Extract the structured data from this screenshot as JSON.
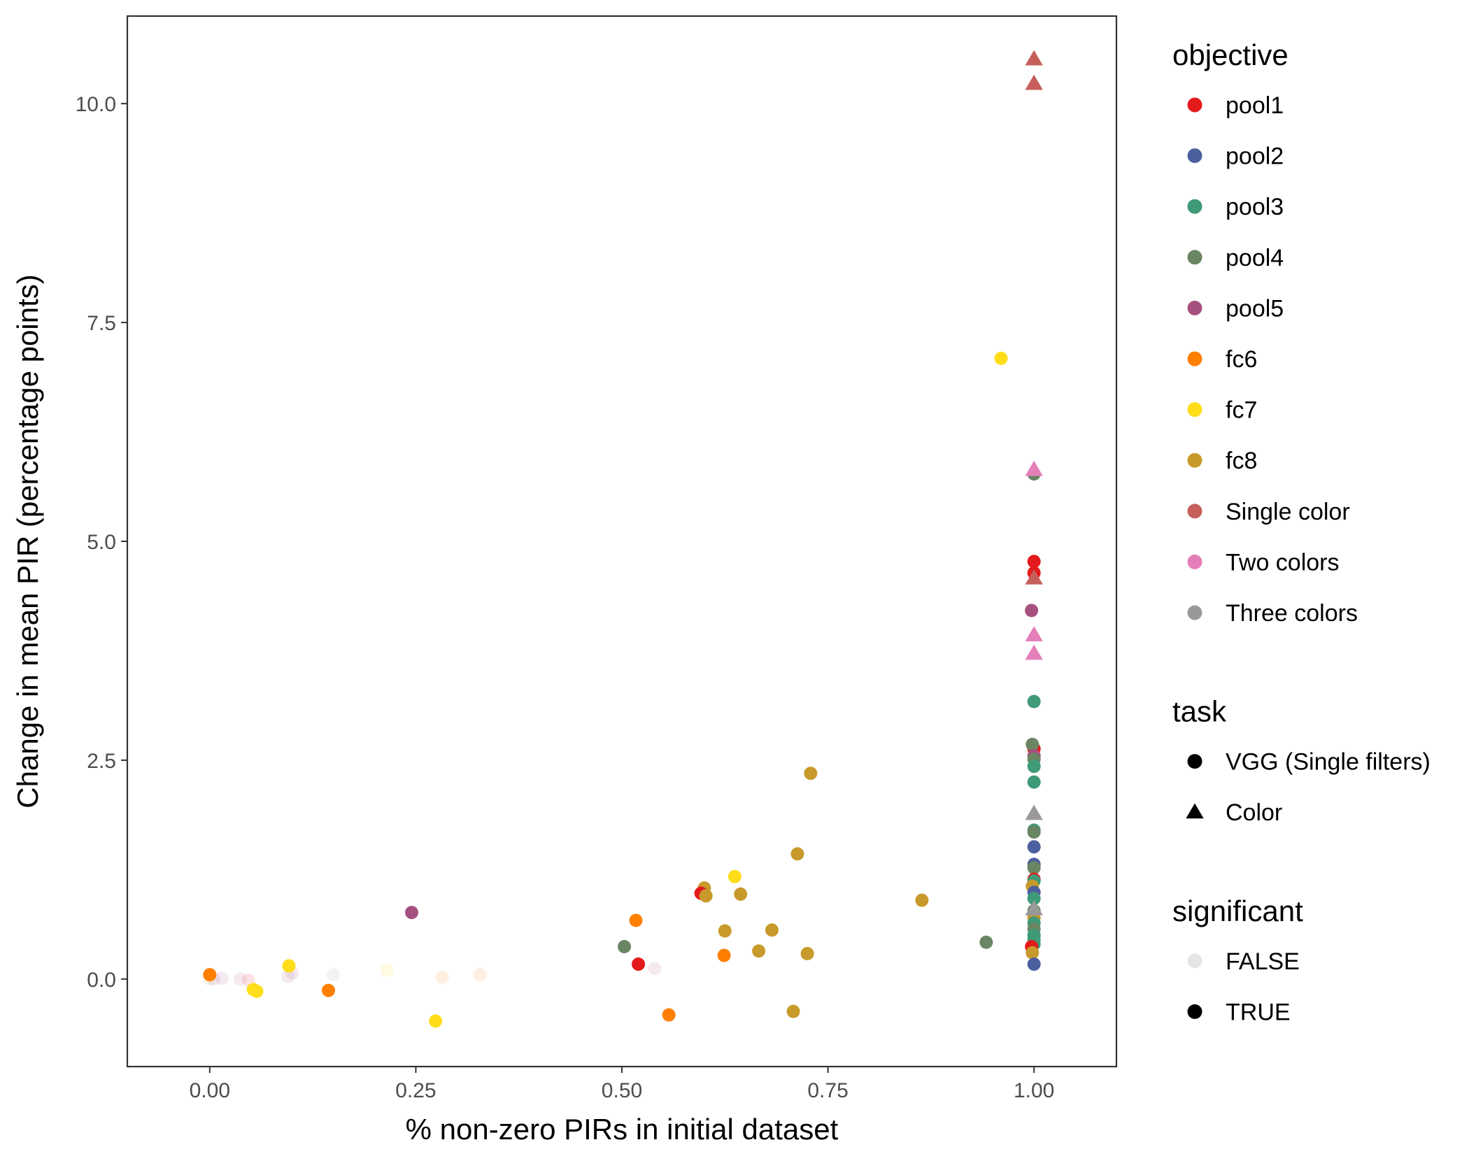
{
  "chart_data": {
    "type": "scatter",
    "title": "",
    "xlabel": "% non-zero PIRs in initial dataset",
    "ylabel": "Change in mean PIR (percentage points)",
    "xlim": [
      -0.1,
      1.1
    ],
    "ylim": [
      -1.0,
      11.0
    ],
    "x_ticks": [
      0.0,
      0.25,
      0.5,
      0.75,
      1.0
    ],
    "x_tick_labels": [
      "0.00",
      "0.25",
      "0.50",
      "0.75",
      "1.00"
    ],
    "y_ticks": [
      0.0,
      2.5,
      5.0,
      7.5,
      10.0
    ],
    "y_tick_labels": [
      "0.0",
      "2.5",
      "5.0",
      "7.5",
      "10.0"
    ],
    "grid": false,
    "legend_position": "right",
    "legends": [
      {
        "title": "objective",
        "entries": [
          {
            "label": "pool1",
            "color": "#e41a1c",
            "shape": "circle"
          },
          {
            "label": "pool2",
            "color": "#4c5f9e",
            "shape": "circle"
          },
          {
            "label": "pool3",
            "color": "#3f9a77",
            "shape": "circle"
          },
          {
            "label": "pool4",
            "color": "#6a8563",
            "shape": "circle"
          },
          {
            "label": "pool5",
            "color": "#a6507f",
            "shape": "circle"
          },
          {
            "label": "fc6",
            "color": "#ff7f00",
            "shape": "circle"
          },
          {
            "label": "fc7",
            "color": "#ffdd1a",
            "shape": "circle"
          },
          {
            "label": "fc8",
            "color": "#c89a2b",
            "shape": "circle"
          },
          {
            "label": "Single color",
            "color": "#c65f5a",
            "shape": "circle"
          },
          {
            "label": "Two colors",
            "color": "#e57fb9",
            "shape": "circle"
          },
          {
            "label": "Three colors",
            "color": "#999999",
            "shape": "circle"
          }
        ]
      },
      {
        "title": "task",
        "entries": [
          {
            "label": "VGG (Single filters)",
            "color": "#000000",
            "shape": "circle"
          },
          {
            "label": "Color",
            "color": "#000000",
            "shape": "triangle"
          }
        ]
      },
      {
        "title": "significant",
        "entries": [
          {
            "label": "FALSE",
            "color": "#000000",
            "shape": "circle",
            "alpha": 0.1
          },
          {
            "label": "TRUE",
            "color": "#000000",
            "shape": "circle",
            "alpha": 1.0
          }
        ]
      }
    ],
    "objective_colors": {
      "pool1": "#e41a1c",
      "pool2": "#4c5f9e",
      "pool3": "#3f9a77",
      "pool4": "#6a8563",
      "pool5": "#a6507f",
      "fc6": "#ff7f00",
      "fc7": "#ffdd1a",
      "fc8": "#c89a2b",
      "Single color": "#c65f5a",
      "Two colors": "#e57fb9",
      "Three colors": "#999999"
    },
    "points": [
      {
        "x": 0.0,
        "y": 0.0,
        "objective": "fc8",
        "task": "VGG (Single filters)",
        "significant": false
      },
      {
        "x": 0.005,
        "y": 0.0,
        "objective": "pool5",
        "task": "VGG (Single filters)",
        "significant": false
      },
      {
        "x": 0.015,
        "y": 0.01,
        "objective": "pool5",
        "task": "VGG (Single filters)",
        "significant": false
      },
      {
        "x": 0.037,
        "y": 0.0,
        "objective": "pool5",
        "task": "VGG (Single filters)",
        "significant": false
      },
      {
        "x": 0.047,
        "y": -0.01,
        "objective": "pool1",
        "task": "VGG (Single filters)",
        "significant": false
      },
      {
        "x": 0.095,
        "y": 0.03,
        "objective": "pool5",
        "task": "VGG (Single filters)",
        "significant": false
      },
      {
        "x": 0.1,
        "y": 0.07,
        "objective": "pool5",
        "task": "VGG (Single filters)",
        "significant": false
      },
      {
        "x": 0.15,
        "y": 0.05,
        "objective": "Three colors",
        "task": "VGG (Single filters)",
        "significant": false
      },
      {
        "x": 0.215,
        "y": 0.1,
        "objective": "fc7",
        "task": "VGG (Single filters)",
        "significant": false
      },
      {
        "x": 0.282,
        "y": 0.02,
        "objective": "fc6",
        "task": "VGG (Single filters)",
        "significant": false
      },
      {
        "x": 0.328,
        "y": 0.05,
        "objective": "fc6",
        "task": "VGG (Single filters)",
        "significant": false
      },
      {
        "x": 0.54,
        "y": 0.12,
        "objective": "pool5",
        "task": "VGG (Single filters)",
        "significant": false
      },
      {
        "x": 0.0,
        "y": 0.05,
        "objective": "fc6",
        "task": "VGG (Single filters)",
        "significant": true
      },
      {
        "x": 0.053,
        "y": -0.12,
        "objective": "fc7",
        "task": "VGG (Single filters)",
        "significant": true
      },
      {
        "x": 0.057,
        "y": -0.14,
        "objective": "fc7",
        "task": "VGG (Single filters)",
        "significant": true
      },
      {
        "x": 0.096,
        "y": 0.15,
        "objective": "fc7",
        "task": "VGG (Single filters)",
        "significant": true
      },
      {
        "x": 0.144,
        "y": -0.13,
        "objective": "fc6",
        "task": "VGG (Single filters)",
        "significant": true
      },
      {
        "x": 0.245,
        "y": 0.76,
        "objective": "pool5",
        "task": "VGG (Single filters)",
        "significant": true
      },
      {
        "x": 0.274,
        "y": -0.48,
        "objective": "fc7",
        "task": "VGG (Single filters)",
        "significant": true
      },
      {
        "x": 0.503,
        "y": 0.37,
        "objective": "pool4",
        "task": "VGG (Single filters)",
        "significant": true
      },
      {
        "x": 0.517,
        "y": 0.67,
        "objective": "fc6",
        "task": "VGG (Single filters)",
        "significant": true
      },
      {
        "x": 0.52,
        "y": 0.17,
        "objective": "pool1",
        "task": "VGG (Single filters)",
        "significant": true
      },
      {
        "x": 0.557,
        "y": -0.41,
        "objective": "fc6",
        "task": "VGG (Single filters)",
        "significant": true
      },
      {
        "x": 0.6,
        "y": 1.04,
        "objective": "fc8",
        "task": "VGG (Single filters)",
        "significant": true
      },
      {
        "x": 0.596,
        "y": 0.98,
        "objective": "pool1",
        "task": "VGG (Single filters)",
        "significant": true
      },
      {
        "x": 0.602,
        "y": 0.95,
        "objective": "fc8",
        "task": "VGG (Single filters)",
        "significant": true
      },
      {
        "x": 0.624,
        "y": 0.27,
        "objective": "fc6",
        "task": "VGG (Single filters)",
        "significant": true
      },
      {
        "x": 0.625,
        "y": 0.55,
        "objective": "fc8",
        "task": "VGG (Single filters)",
        "significant": true
      },
      {
        "x": 0.637,
        "y": 1.17,
        "objective": "fc7",
        "task": "VGG (Single filters)",
        "significant": true
      },
      {
        "x": 0.644,
        "y": 0.97,
        "objective": "fc8",
        "task": "VGG (Single filters)",
        "significant": true
      },
      {
        "x": 0.666,
        "y": 0.32,
        "objective": "fc8",
        "task": "VGG (Single filters)",
        "significant": true
      },
      {
        "x": 0.682,
        "y": 0.56,
        "objective": "fc8",
        "task": "VGG (Single filters)",
        "significant": true
      },
      {
        "x": 0.708,
        "y": -0.37,
        "objective": "fc8",
        "task": "VGG (Single filters)",
        "significant": true
      },
      {
        "x": 0.713,
        "y": 1.43,
        "objective": "fc8",
        "task": "VGG (Single filters)",
        "significant": true
      },
      {
        "x": 0.725,
        "y": 0.29,
        "objective": "fc8",
        "task": "VGG (Single filters)",
        "significant": true
      },
      {
        "x": 0.729,
        "y": 2.35,
        "objective": "fc8",
        "task": "VGG (Single filters)",
        "significant": true
      },
      {
        "x": 0.864,
        "y": 0.9,
        "objective": "fc8",
        "task": "VGG (Single filters)",
        "significant": true
      },
      {
        "x": 0.942,
        "y": 0.42,
        "objective": "pool4",
        "task": "VGG (Single filters)",
        "significant": true
      },
      {
        "x": 0.96,
        "y": 7.09,
        "objective": "fc7",
        "task": "VGG (Single filters)",
        "significant": true
      },
      {
        "x": 1.0,
        "y": 5.77,
        "objective": "pool4",
        "task": "VGG (Single filters)",
        "significant": true
      },
      {
        "x": 1.0,
        "y": 4.77,
        "objective": "pool1",
        "task": "VGG (Single filters)",
        "significant": true
      },
      {
        "x": 1.0,
        "y": 4.64,
        "objective": "pool1",
        "task": "VGG (Single filters)",
        "significant": true
      },
      {
        "x": 0.997,
        "y": 4.21,
        "objective": "pool5",
        "task": "VGG (Single filters)",
        "significant": true
      },
      {
        "x": 1.0,
        "y": 3.17,
        "objective": "pool3",
        "task": "VGG (Single filters)",
        "significant": true
      },
      {
        "x": 1.0,
        "y": 2.63,
        "objective": "pool1",
        "task": "VGG (Single filters)",
        "significant": true
      },
      {
        "x": 0.998,
        "y": 2.68,
        "objective": "pool4",
        "task": "VGG (Single filters)",
        "significant": true
      },
      {
        "x": 1.0,
        "y": 2.55,
        "objective": "pool5",
        "task": "VGG (Single filters)",
        "significant": true
      },
      {
        "x": 1.0,
        "y": 2.51,
        "objective": "pool4",
        "task": "VGG (Single filters)",
        "significant": true
      },
      {
        "x": 1.0,
        "y": 2.43,
        "objective": "pool3",
        "task": "VGG (Single filters)",
        "significant": true
      },
      {
        "x": 1.0,
        "y": 2.25,
        "objective": "pool3",
        "task": "VGG (Single filters)",
        "significant": true
      },
      {
        "x": 1.0,
        "y": 1.7,
        "objective": "pool3",
        "task": "VGG (Single filters)",
        "significant": true
      },
      {
        "x": 1.0,
        "y": 1.68,
        "objective": "pool4",
        "task": "VGG (Single filters)",
        "significant": true
      },
      {
        "x": 1.0,
        "y": 1.51,
        "objective": "pool2",
        "task": "VGG (Single filters)",
        "significant": true
      },
      {
        "x": 1.0,
        "y": 1.31,
        "objective": "pool2",
        "task": "VGG (Single filters)",
        "significant": true
      },
      {
        "x": 1.0,
        "y": 1.27,
        "objective": "pool4",
        "task": "VGG (Single filters)",
        "significant": true
      },
      {
        "x": 1.0,
        "y": 1.14,
        "objective": "pool1",
        "task": "VGG (Single filters)",
        "significant": true
      },
      {
        "x": 1.0,
        "y": 1.12,
        "objective": "pool3",
        "task": "VGG (Single filters)",
        "significant": true
      },
      {
        "x": 0.998,
        "y": 1.06,
        "objective": "fc8",
        "task": "VGG (Single filters)",
        "significant": true
      },
      {
        "x": 1.0,
        "y": 0.99,
        "objective": "pool2",
        "task": "VGG (Single filters)",
        "significant": true
      },
      {
        "x": 1.0,
        "y": 0.92,
        "objective": "pool3",
        "task": "VGG (Single filters)",
        "significant": true
      },
      {
        "x": 1.0,
        "y": 0.78,
        "objective": "pool4",
        "task": "VGG (Single filters)",
        "significant": true
      },
      {
        "x": 1.0,
        "y": 0.7,
        "objective": "fc8",
        "task": "VGG (Single filters)",
        "significant": true
      },
      {
        "x": 1.0,
        "y": 0.64,
        "objective": "pool3",
        "task": "VGG (Single filters)",
        "significant": true
      },
      {
        "x": 1.0,
        "y": 0.57,
        "objective": "pool4",
        "task": "VGG (Single filters)",
        "significant": true
      },
      {
        "x": 1.0,
        "y": 0.5,
        "objective": "pool3",
        "task": "VGG (Single filters)",
        "significant": true
      },
      {
        "x": 1.0,
        "y": 0.45,
        "objective": "pool3",
        "task": "VGG (Single filters)",
        "significant": true
      },
      {
        "x": 1.0,
        "y": 0.4,
        "objective": "pool3",
        "task": "VGG (Single filters)",
        "significant": true
      },
      {
        "x": 0.997,
        "y": 0.37,
        "objective": "pool1",
        "task": "VGG (Single filters)",
        "significant": true
      },
      {
        "x": 0.998,
        "y": 0.3,
        "objective": "fc8",
        "task": "VGG (Single filters)",
        "significant": true
      },
      {
        "x": 1.0,
        "y": 0.17,
        "objective": "pool2",
        "task": "VGG (Single filters)",
        "significant": true
      },
      {
        "x": 1.0,
        "y": 10.51,
        "objective": "Single color",
        "task": "Color",
        "significant": true
      },
      {
        "x": 1.0,
        "y": 10.23,
        "objective": "Single color",
        "task": "Color",
        "significant": true
      },
      {
        "x": 1.0,
        "y": 5.82,
        "objective": "Two colors",
        "task": "Color",
        "significant": true
      },
      {
        "x": 1.0,
        "y": 4.58,
        "objective": "Single color",
        "task": "Color",
        "significant": true
      },
      {
        "x": 1.0,
        "y": 3.93,
        "objective": "Two colors",
        "task": "Color",
        "significant": true
      },
      {
        "x": 1.0,
        "y": 3.72,
        "objective": "Two colors",
        "task": "Color",
        "significant": true
      },
      {
        "x": 1.0,
        "y": 1.89,
        "objective": "Three colors",
        "task": "Color",
        "significant": true
      },
      {
        "x": 1.0,
        "y": 0.8,
        "objective": "Three colors",
        "task": "Color",
        "significant": true
      }
    ]
  }
}
